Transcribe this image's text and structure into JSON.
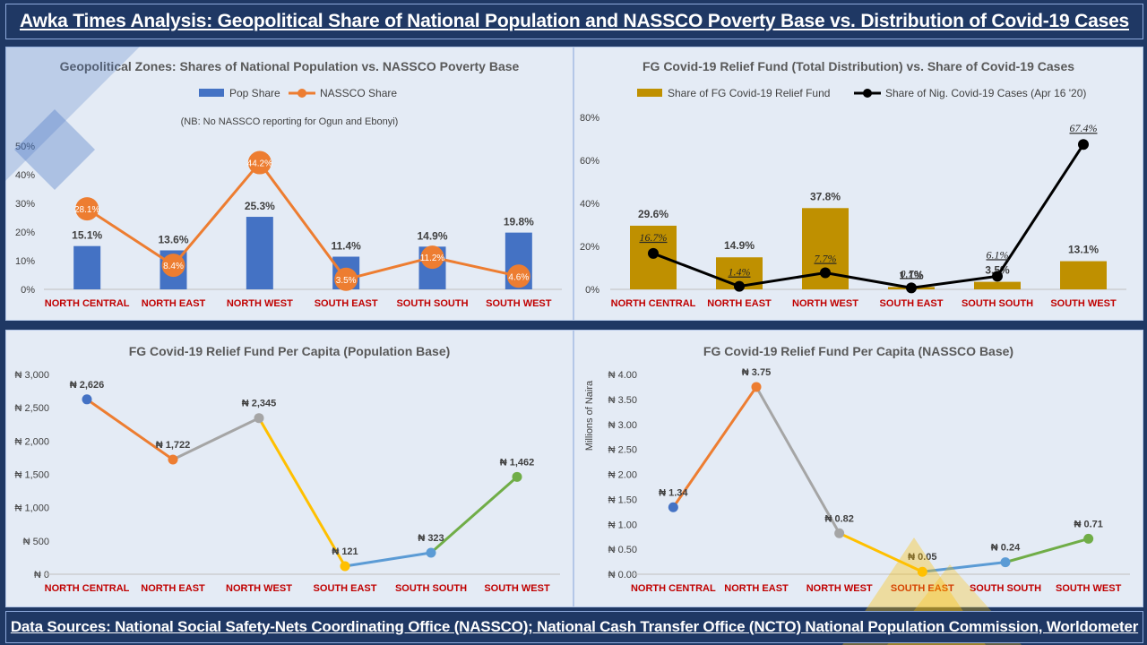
{
  "header": {
    "title": "Awka Times Analysis: Geopolitical Share of National Population and NASSCO Poverty Base vs. Distribution of Covid-19 Cases and FG Relief Fund"
  },
  "footer": {
    "sources": "Data Sources: National Social Safety-Nets Coordinating Office (NASSCO); National Cash Transfer Office (NCTO) National Population Commission, Worldometer"
  },
  "colors": {
    "banner": "#1f3864",
    "panel": "#e4ebf5",
    "bar_blue": "#4472c4",
    "line_orange": "#ed7d31",
    "bar_gold": "#bf9000",
    "line_black": "#000000",
    "category_red": "#c00000"
  },
  "chart_data": [
    {
      "type": "bar",
      "title": "Geopolitical Zones: Shares of National Population vs. NASSCO Poverty Base",
      "note": "(NB: No NASSCO reporting for Ogun and Ebonyi)",
      "categories": [
        "NORTH CENTRAL",
        "NORTH EAST",
        "NORTH WEST",
        "SOUTH EAST",
        "SOUTH SOUTH",
        "SOUTH WEST"
      ],
      "ylim": [
        0,
        50
      ],
      "yticks": [
        "0%",
        "10%",
        "20%",
        "30%",
        "40%",
        "50%"
      ],
      "legend": "top-center",
      "series": [
        {
          "name": "Pop Share",
          "type": "bar",
          "values": [
            15.1,
            13.6,
            25.3,
            11.4,
            14.9,
            19.8
          ],
          "labels": [
            "15.1%",
            "13.6%",
            "25.3%",
            "11.4%",
            "14.9%",
            "19.8%"
          ]
        },
        {
          "name": "NASSCO Share",
          "type": "line",
          "values": [
            28.1,
            8.4,
            44.2,
            3.5,
            11.2,
            4.6
          ],
          "labels": [
            "28.1%",
            "8.4%",
            "44.2%",
            "3.5%",
            "11.2%",
            "4.6%"
          ]
        }
      ]
    },
    {
      "type": "bar",
      "title": "FG Covid-19 Relief Fund (Total Distribution) vs. Share of Covid-19 Cases",
      "categories": [
        "NORTH CENTRAL",
        "NORTH EAST",
        "NORTH WEST",
        "SOUTH EAST",
        "SOUTH SOUTH",
        "SOUTH WEST"
      ],
      "ylim": [
        0,
        80
      ],
      "yticks": [
        "0%",
        "20%",
        "40%",
        "60%",
        "80%"
      ],
      "legend": "top-center",
      "series": [
        {
          "name": "Share of FG Covid-19 Relief Fund",
          "type": "bar",
          "values": [
            29.6,
            14.9,
            37.8,
            1.1,
            3.5,
            13.1
          ],
          "labels": [
            "29.6%",
            "14.9%",
            "37.8%",
            "1.1%",
            "3.5%",
            "13.1%"
          ]
        },
        {
          "name": "Share of Nig. Covid-19 Cases (Apr 16 '20)",
          "type": "line",
          "values": [
            16.7,
            1.4,
            7.7,
            0.7,
            6.1,
            67.4
          ],
          "labels": [
            "16.7%",
            "1.4%",
            "7.7%",
            "0.7%",
            "6.1%",
            "67.4%"
          ]
        }
      ]
    },
    {
      "type": "line",
      "title": "FG Covid-19 Relief Fund Per Capita (Population Base)",
      "categories": [
        "NORTH CENTRAL",
        "NORTH EAST",
        "NORTH WEST",
        "SOUTH EAST",
        "SOUTH SOUTH",
        "SOUTH WEST"
      ],
      "ylim": [
        0,
        3000
      ],
      "yticks": [
        "₦ 0",
        "₦ 500",
        "₦ 1,000",
        "₦ 1,500",
        "₦ 2,000",
        "₦ 2,500",
        "₦ 3,000"
      ],
      "values": [
        2626,
        1722,
        2345,
        121,
        323,
        1462
      ],
      "labels": [
        "₦ 2,626",
        "₦ 1,722",
        "₦ 2,345",
        "₦ 121",
        "₦ 323",
        "₦ 1,462"
      ],
      "point_colors": [
        "#4472c4",
        "#ed7d31",
        "#a5a5a5",
        "#ffc000",
        "#5b9bd5",
        "#70ad47"
      ]
    },
    {
      "type": "line",
      "title": "FG Covid-19 Relief Fund Per Capita (NASSCO Base)",
      "ylabel": "Millions of Naira",
      "categories": [
        "NORTH CENTRAL",
        "NORTH EAST",
        "NORTH WEST",
        "SOUTH EAST",
        "SOUTH SOUTH",
        "SOUTH WEST"
      ],
      "ylim": [
        0,
        4
      ],
      "yticks": [
        "₦ 0.00",
        "₦ 0.50",
        "₦ 1.00",
        "₦ 1.50",
        "₦ 2.00",
        "₦ 2.50",
        "₦ 3.00",
        "₦ 3.50",
        "₦ 4.00"
      ],
      "values": [
        1.34,
        3.75,
        0.82,
        0.05,
        0.24,
        0.71
      ],
      "labels": [
        "₦ 1.34",
        "₦ 3.75",
        "₦ 0.82",
        "₦ 0.05",
        "₦ 0.24",
        "₦ 0.71"
      ],
      "point_colors": [
        "#4472c4",
        "#ed7d31",
        "#a5a5a5",
        "#ffc000",
        "#5b9bd5",
        "#70ad47"
      ]
    }
  ]
}
